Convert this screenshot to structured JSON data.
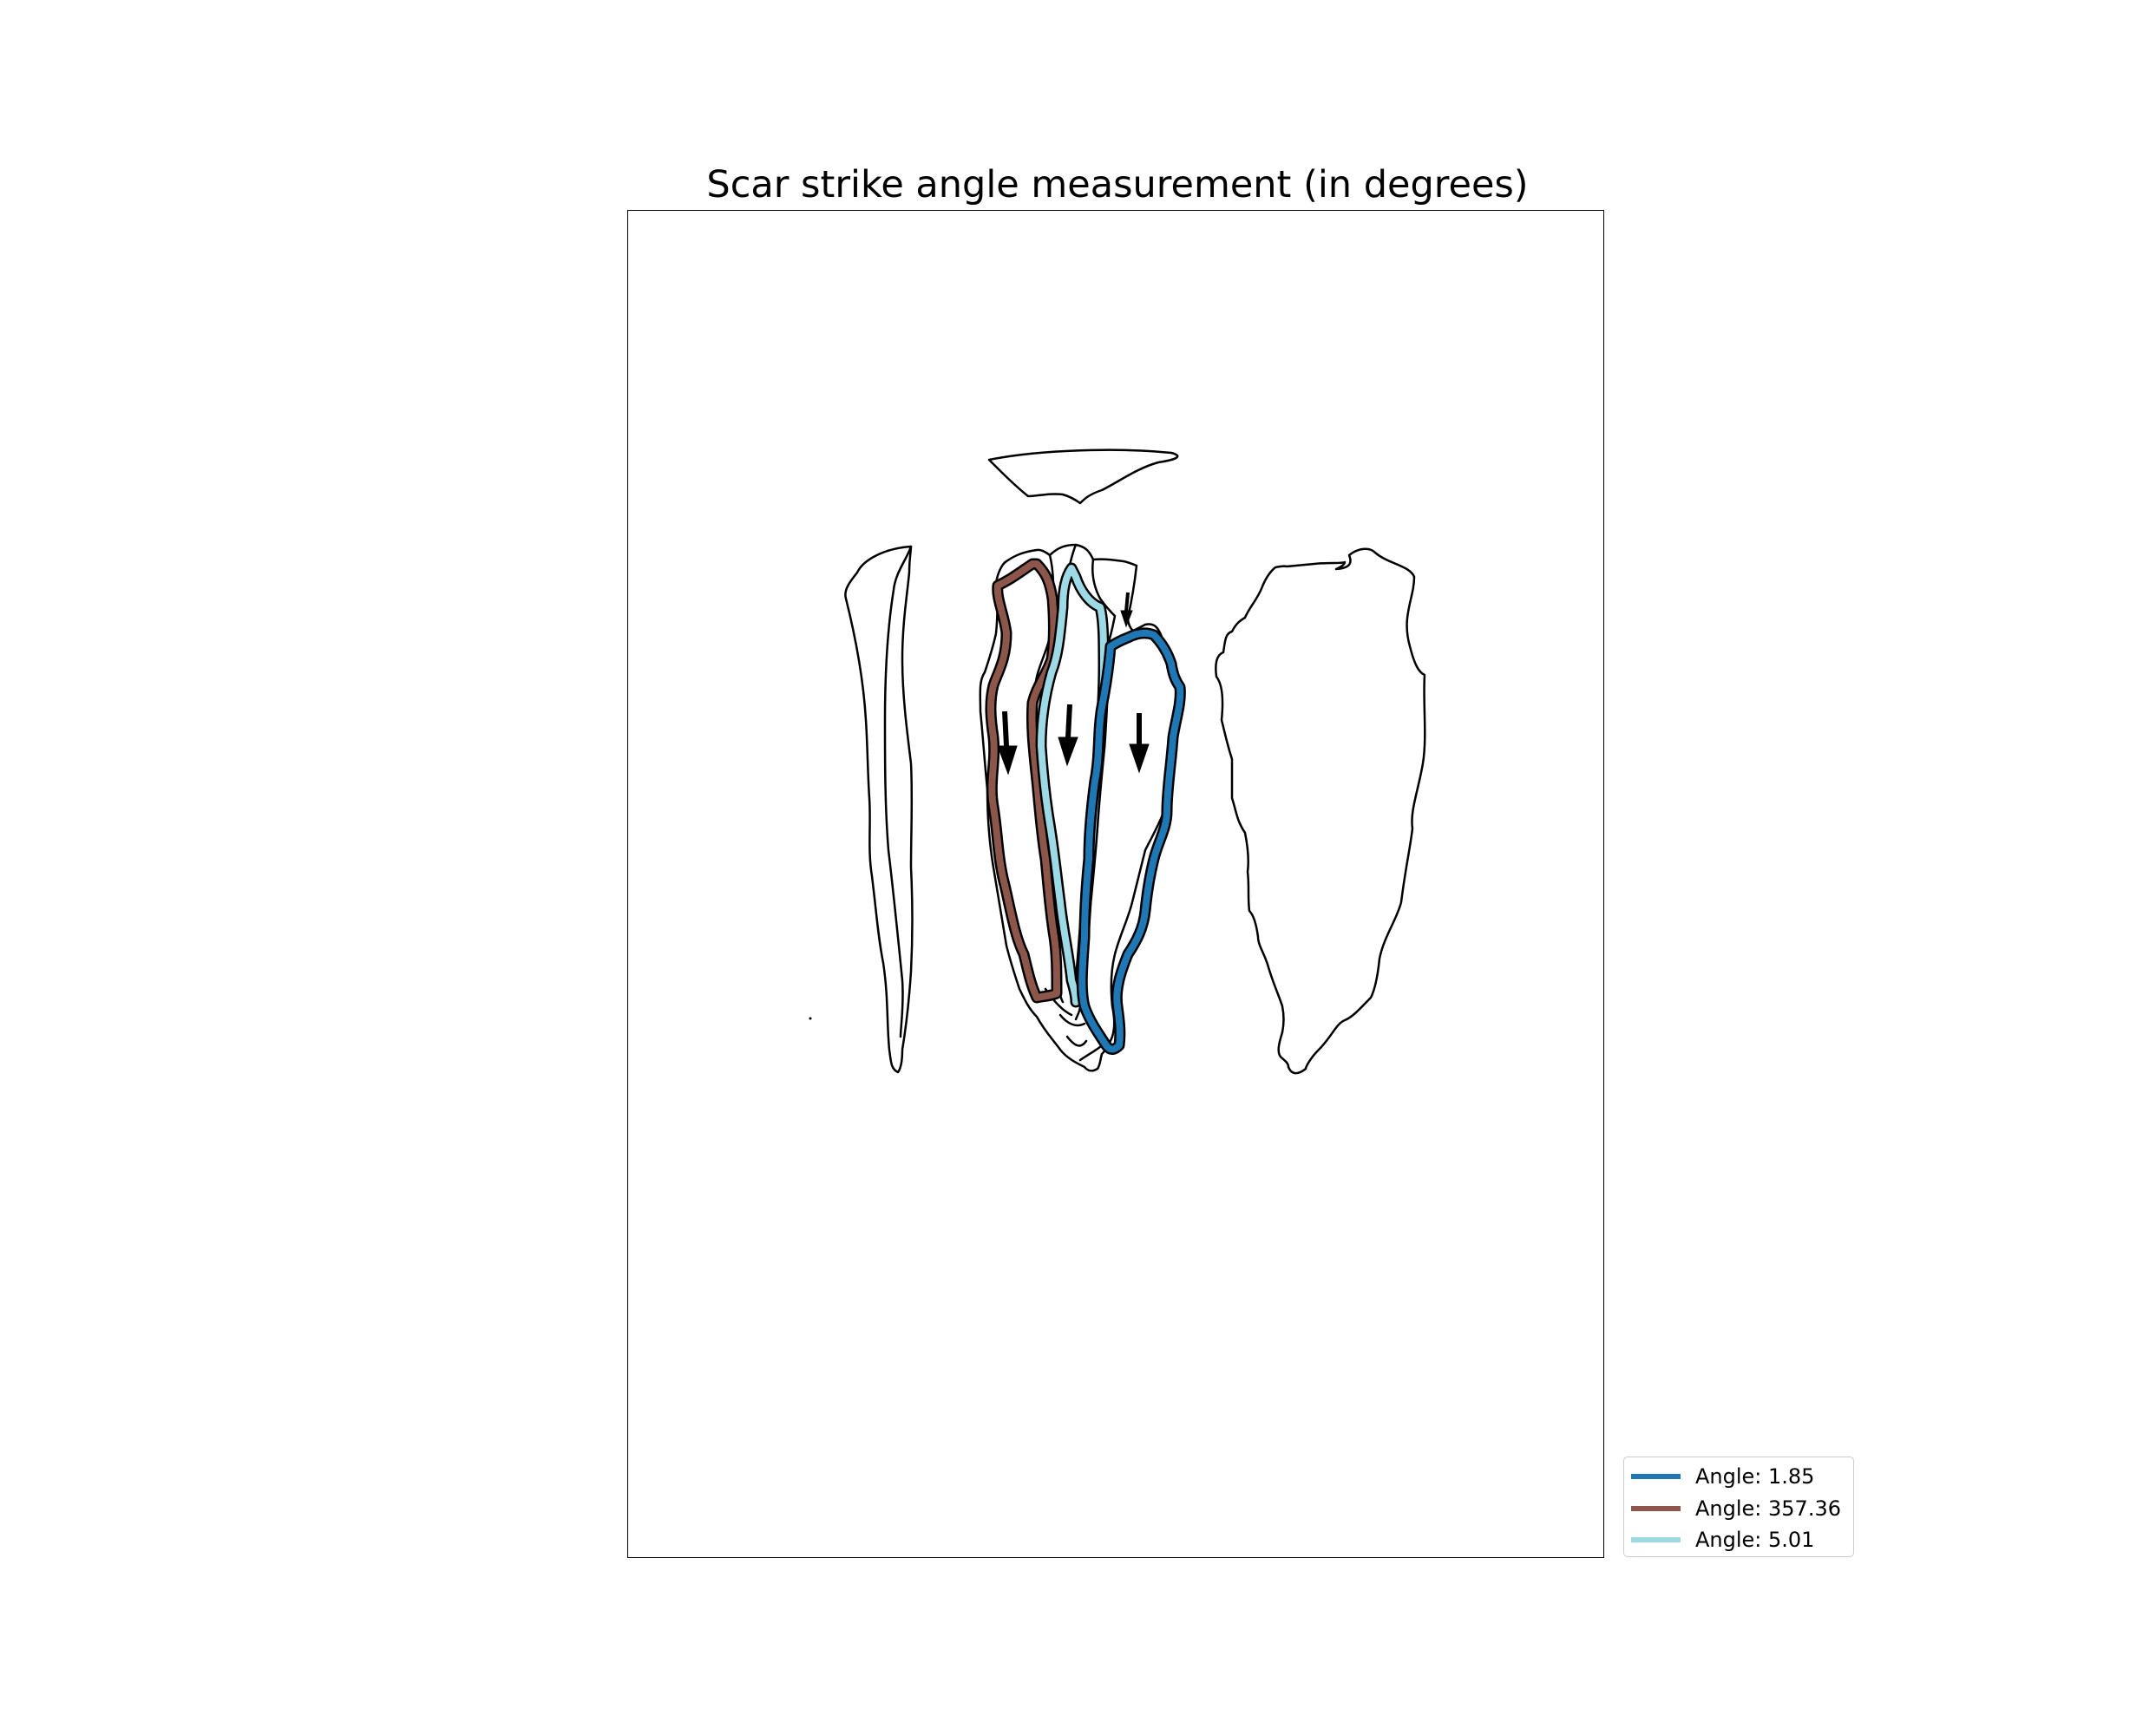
{
  "title": "Scar strike angle measurement (in degrees)",
  "scars": [
    {
      "label": "Angle: 1.85",
      "color": "#1f77b4"
    },
    {
      "label": "Angle: 357.36",
      "color": "#8c564b"
    },
    {
      "label": "Angle: 5.01",
      "color": "#9edae5"
    }
  ],
  "colors": {
    "outline": "#000000",
    "background": "#ffffff"
  }
}
